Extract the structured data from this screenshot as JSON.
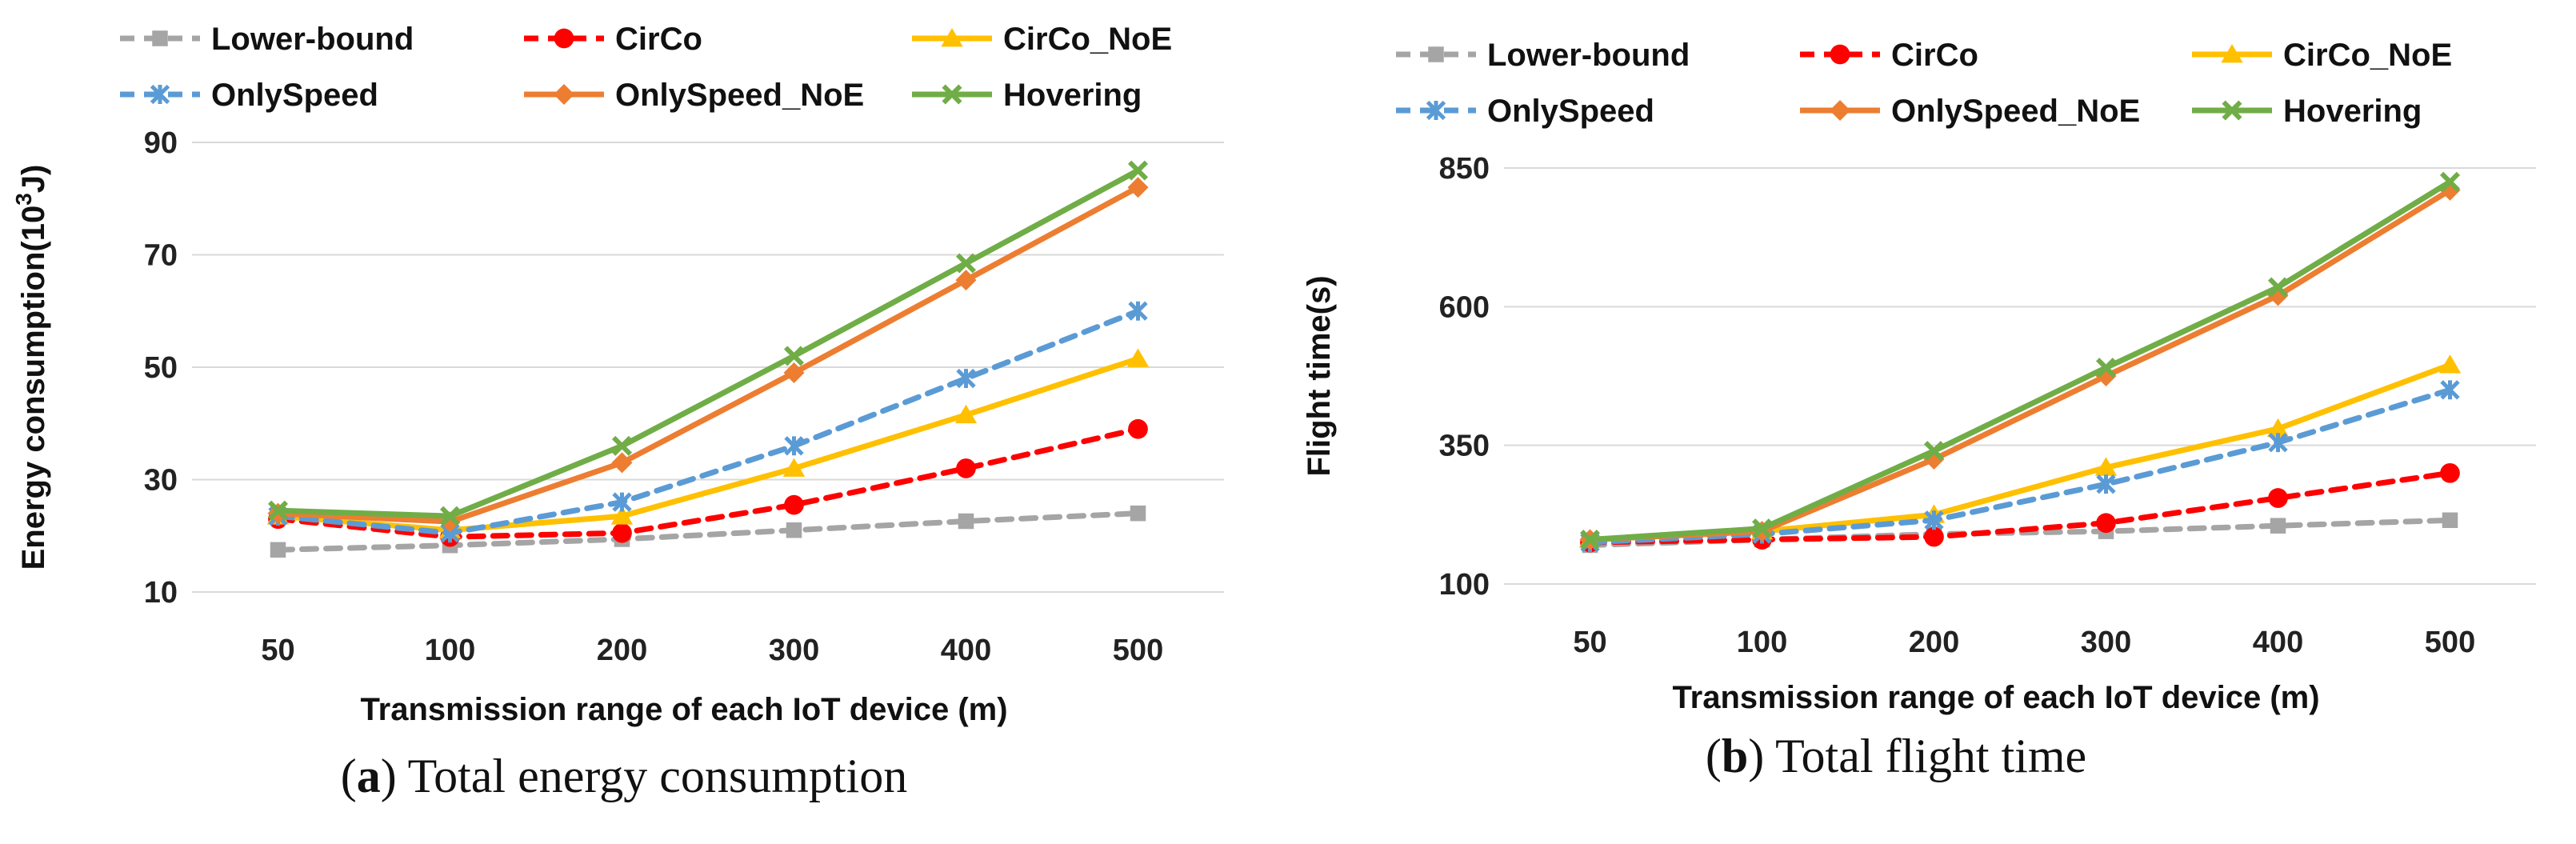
{
  "chart_data": [
    {
      "type": "line",
      "panel_letter": "a",
      "caption": "Total energy consumption",
      "title": "",
      "xlabel": "Transmission range of  each IoT device (m)",
      "ylabel": "Energy consumption(10³J)",
      "categories": [
        "50",
        "100",
        "200",
        "300",
        "400",
        "500"
      ],
      "ylim": [
        10,
        90
      ],
      "yticks": [
        10,
        30,
        50,
        70,
        90
      ],
      "grid": true,
      "legend_position": "top",
      "series": [
        {
          "name": "Lower-bound",
          "color": "#a5a5a5",
          "dashed": true,
          "marker": "square",
          "values": [
            17.5,
            18.3,
            19.4,
            21.0,
            22.6,
            24.0
          ]
        },
        {
          "name": "CirCo",
          "color": "#ff0000",
          "dashed": true,
          "marker": "circle",
          "values": [
            23.0,
            19.8,
            20.5,
            25.5,
            32.0,
            39.0
          ]
        },
        {
          "name": "CirCo_NoE",
          "color": "#ffc000",
          "dashed": false,
          "marker": "triangle",
          "values": [
            23.5,
            21.0,
            23.5,
            32.0,
            41.5,
            51.5
          ]
        },
        {
          "name": "OnlySpeed",
          "color": "#5b9bd5",
          "dashed": true,
          "marker": "star",
          "values": [
            23.5,
            20.5,
            26.0,
            36.0,
            48.0,
            60.0
          ]
        },
        {
          "name": "OnlySpeed_NoE",
          "color": "#ed7d31",
          "dashed": false,
          "marker": "diamond",
          "values": [
            24.0,
            22.5,
            33.0,
            49.0,
            65.5,
            82.0
          ]
        },
        {
          "name": "Hovering",
          "color": "#70ad47",
          "dashed": false,
          "marker": "x",
          "values": [
            24.5,
            23.5,
            36.0,
            52.0,
            68.5,
            85.0
          ]
        }
      ]
    },
    {
      "type": "line",
      "panel_letter": "b",
      "caption": "Total flight time",
      "title": "",
      "xlabel": "Transmission range of  each IoT device (m)",
      "ylabel": "Flight time(s)",
      "categories": [
        "50",
        "100",
        "200",
        "300",
        "400",
        "500"
      ],
      "ylim": [
        100,
        850
      ],
      "yticks": [
        100,
        350,
        600,
        850
      ],
      "grid": true,
      "legend_position": "top",
      "series": [
        {
          "name": "Lower-bound",
          "color": "#a5a5a5",
          "dashed": true,
          "marker": "square",
          "values": [
            170,
            180,
            190,
            195,
            205,
            215
          ]
        },
        {
          "name": "CirCo",
          "color": "#ff0000",
          "dashed": true,
          "marker": "circle",
          "values": [
            175,
            180,
            185,
            210,
            255,
            300
          ]
        },
        {
          "name": "CirCo_NoE",
          "color": "#ffc000",
          "dashed": false,
          "marker": "triangle",
          "values": [
            180,
            195,
            225,
            310,
            380,
            495
          ]
        },
        {
          "name": "OnlySpeed",
          "color": "#5b9bd5",
          "dashed": true,
          "marker": "star",
          "values": [
            175,
            190,
            215,
            280,
            355,
            450
          ]
        },
        {
          "name": "OnlySpeed_NoE",
          "color": "#ed7d31",
          "dashed": false,
          "marker": "diamond",
          "values": [
            180,
            195,
            325,
            475,
            620,
            810
          ]
        },
        {
          "name": "Hovering",
          "color": "#70ad47",
          "dashed": false,
          "marker": "x",
          "values": [
            180,
            200,
            340,
            490,
            635,
            825
          ]
        }
      ]
    }
  ]
}
